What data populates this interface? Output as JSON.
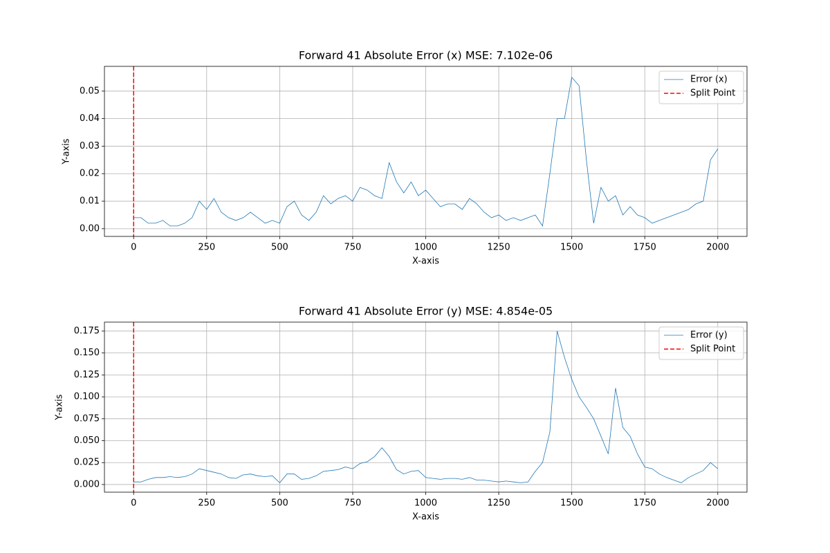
{
  "chart_data": [
    {
      "type": "line",
      "title": "Forward 41 Absolute Error (x) MSE: 7.102e-06",
      "xlabel": "X-axis",
      "ylabel": "Y-axis",
      "x": [
        0,
        25,
        50,
        75,
        100,
        125,
        150,
        175,
        200,
        225,
        250,
        275,
        300,
        325,
        350,
        375,
        400,
        425,
        450,
        475,
        500,
        525,
        550,
        575,
        600,
        625,
        650,
        675,
        700,
        725,
        750,
        775,
        800,
        825,
        850,
        875,
        900,
        925,
        950,
        975,
        1000,
        1025,
        1050,
        1075,
        1100,
        1125,
        1150,
        1175,
        1200,
        1225,
        1250,
        1275,
        1300,
        1325,
        1350,
        1375,
        1400,
        1425,
        1450,
        1475,
        1500,
        1525,
        1550,
        1575,
        1600,
        1625,
        1650,
        1675,
        1700,
        1725,
        1750,
        1775,
        1800,
        1825,
        1850,
        1875,
        1900,
        1925,
        1950,
        1975,
        2000
      ],
      "series": [
        {
          "name": "Error (x)",
          "color": "#1f77b4",
          "values": [
            0.004,
            0.004,
            0.002,
            0.002,
            0.003,
            0.001,
            0.001,
            0.002,
            0.004,
            0.01,
            0.007,
            0.011,
            0.006,
            0.004,
            0.003,
            0.004,
            0.006,
            0.004,
            0.002,
            0.003,
            0.002,
            0.008,
            0.01,
            0.005,
            0.003,
            0.006,
            0.012,
            0.009,
            0.011,
            0.012,
            0.01,
            0.015,
            0.014,
            0.012,
            0.011,
            0.024,
            0.017,
            0.013,
            0.017,
            0.012,
            0.014,
            0.011,
            0.008,
            0.009,
            0.009,
            0.007,
            0.011,
            0.009,
            0.006,
            0.004,
            0.005,
            0.003,
            0.004,
            0.003,
            0.004,
            0.005,
            0.001,
            0.02,
            0.04,
            0.04,
            0.055,
            0.052,
            0.025,
            0.002,
            0.015,
            0.01,
            0.012,
            0.005,
            0.008,
            0.005,
            0.004,
            0.002,
            0.003,
            0.004,
            0.005,
            0.006,
            0.007,
            0.009,
            0.01,
            0.025,
            0.029
          ]
        },
        {
          "name": "Split Point",
          "color": "#ff0000",
          "linestyle": "dashed",
          "x_value": 0
        }
      ],
      "xlim": [
        -100,
        2100
      ],
      "ylim": [
        -0.0028,
        0.059
      ],
      "xticks": [
        0,
        250,
        500,
        750,
        1000,
        1250,
        1500,
        1750,
        2000
      ],
      "yticks": [
        {
          "value": 0,
          "label": "0.00"
        },
        {
          "value": 0.01,
          "label": "0.01"
        },
        {
          "value": 0.02,
          "label": "0.02"
        },
        {
          "value": 0.03,
          "label": "0.03"
        },
        {
          "value": 0.04,
          "label": "0.04"
        },
        {
          "value": 0.05,
          "label": "0.05"
        }
      ],
      "grid": true,
      "legend": "upper right"
    },
    {
      "type": "line",
      "title": "Forward 41 Absolute Error (y) MSE: 4.854e-05",
      "xlabel": "X-axis",
      "ylabel": "Y-axis",
      "x": [
        0,
        25,
        50,
        75,
        100,
        125,
        150,
        175,
        200,
        225,
        250,
        275,
        300,
        325,
        350,
        375,
        400,
        425,
        450,
        475,
        500,
        525,
        550,
        575,
        600,
        625,
        650,
        675,
        700,
        725,
        750,
        775,
        800,
        825,
        850,
        875,
        900,
        925,
        950,
        975,
        1000,
        1025,
        1050,
        1075,
        1100,
        1125,
        1150,
        1175,
        1200,
        1225,
        1250,
        1275,
        1300,
        1325,
        1350,
        1375,
        1400,
        1425,
        1450,
        1475,
        1500,
        1525,
        1550,
        1575,
        1600,
        1625,
        1650,
        1675,
        1700,
        1725,
        1750,
        1775,
        1800,
        1825,
        1850,
        1875,
        1900,
        1925,
        1950,
        1975,
        2000
      ],
      "series": [
        {
          "name": "Error (y)",
          "color": "#1f77b4",
          "values": [
            0.003,
            0.003,
            0.006,
            0.008,
            0.008,
            0.009,
            0.008,
            0.009,
            0.012,
            0.018,
            0.016,
            0.014,
            0.012,
            0.008,
            0.007,
            0.011,
            0.012,
            0.01,
            0.009,
            0.01,
            0.002,
            0.012,
            0.012,
            0.006,
            0.007,
            0.01,
            0.015,
            0.016,
            0.017,
            0.02,
            0.018,
            0.024,
            0.026,
            0.032,
            0.042,
            0.032,
            0.017,
            0.012,
            0.015,
            0.016,
            0.008,
            0.007,
            0.006,
            0.007,
            0.007,
            0.006,
            0.008,
            0.005,
            0.005,
            0.004,
            0.003,
            0.004,
            0.003,
            0.002,
            0.003,
            0.015,
            0.025,
            0.06,
            0.175,
            0.145,
            0.12,
            0.1,
            0.088,
            0.075,
            0.055,
            0.035,
            0.11,
            0.065,
            0.055,
            0.035,
            0.02,
            0.018,
            0.012,
            0.008,
            0.005,
            0.002,
            0.008,
            0.012,
            0.016,
            0.025,
            0.018
          ]
        },
        {
          "name": "Split Point",
          "color": "#ff0000",
          "linestyle": "dashed",
          "x_value": 0
        }
      ],
      "xlim": [
        -100,
        2100
      ],
      "ylim": [
        -0.0087,
        0.1852
      ],
      "xticks": [
        0,
        250,
        500,
        750,
        1000,
        1250,
        1500,
        1750,
        2000
      ],
      "yticks": [
        {
          "value": 0,
          "label": "0.000"
        },
        {
          "value": 0.025,
          "label": "0.025"
        },
        {
          "value": 0.05,
          "label": "0.050"
        },
        {
          "value": 0.075,
          "label": "0.075"
        },
        {
          "value": 0.1,
          "label": "0.100"
        },
        {
          "value": 0.125,
          "label": "0.125"
        },
        {
          "value": 0.15,
          "label": "0.150"
        },
        {
          "value": 0.175,
          "label": "0.175"
        }
      ],
      "grid": true,
      "legend": "upper right"
    }
  ]
}
